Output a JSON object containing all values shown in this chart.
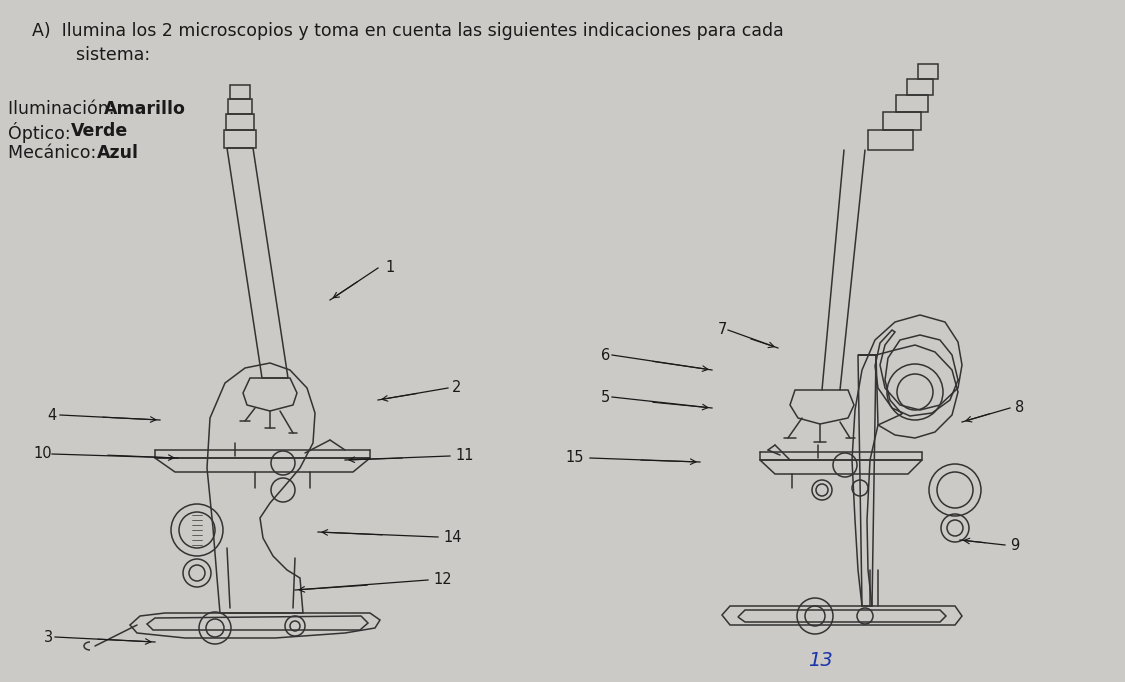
{
  "bg_color": "#cccac6",
  "title_line1": "A)  Ilumina los 2 microscopios y toma en cuenta las siguientes indicaciones para cada",
  "title_line2": "        sistema:",
  "legend_line1_normal": "Iluminación: ",
  "legend_line1_bold": "Amarillo",
  "legend_line2_normal": "Óptico: ",
  "legend_line2_bold": "Verde",
  "legend_line3_normal": "Mecánico: ",
  "legend_line3_bold": "Azul",
  "title_fontsize": 12.5,
  "legend_fontsize": 12.5,
  "fig_width": 11.25,
  "fig_height": 6.82,
  "label_fontsize": 10.5,
  "label_color": "#1a1a1a",
  "number13_color": "#1a35aa"
}
